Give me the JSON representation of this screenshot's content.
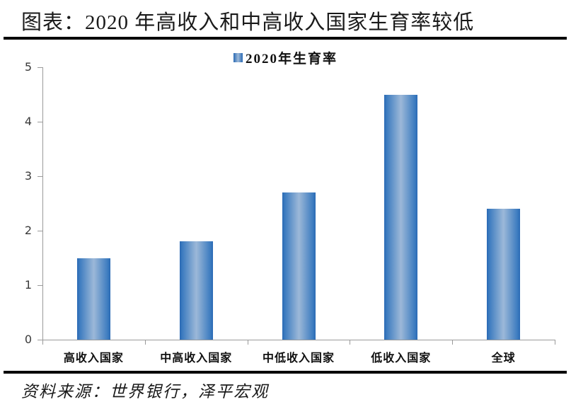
{
  "title": "图表：2020 年高收入和中高收入国家生育率较低",
  "source": "资料来源：世界银行，泽平宏观",
  "legend": {
    "label": "2020年生育率"
  },
  "colors": {
    "bar_edge": "#2a6ab4",
    "bar_center": "#9cb8d8",
    "axis": "#9a9a9a",
    "text": "#1a1a1a",
    "rule": "#000000"
  },
  "chart_data": {
    "type": "bar",
    "title": "2020年生育率",
    "categories": [
      "高收入国家",
      "中高收入国家",
      "中低收入国家",
      "低收入国家",
      "全球"
    ],
    "values": [
      1.5,
      1.8,
      2.7,
      4.5,
      2.4
    ],
    "xlabel": "",
    "ylabel": "",
    "ylim": [
      0,
      5
    ],
    "ytick_interval": 1,
    "yticks": [
      0,
      1,
      2,
      3,
      4,
      5
    ],
    "grid": false,
    "legend_entries": [
      "2020年生育率"
    ],
    "legend_position": "top-center"
  }
}
